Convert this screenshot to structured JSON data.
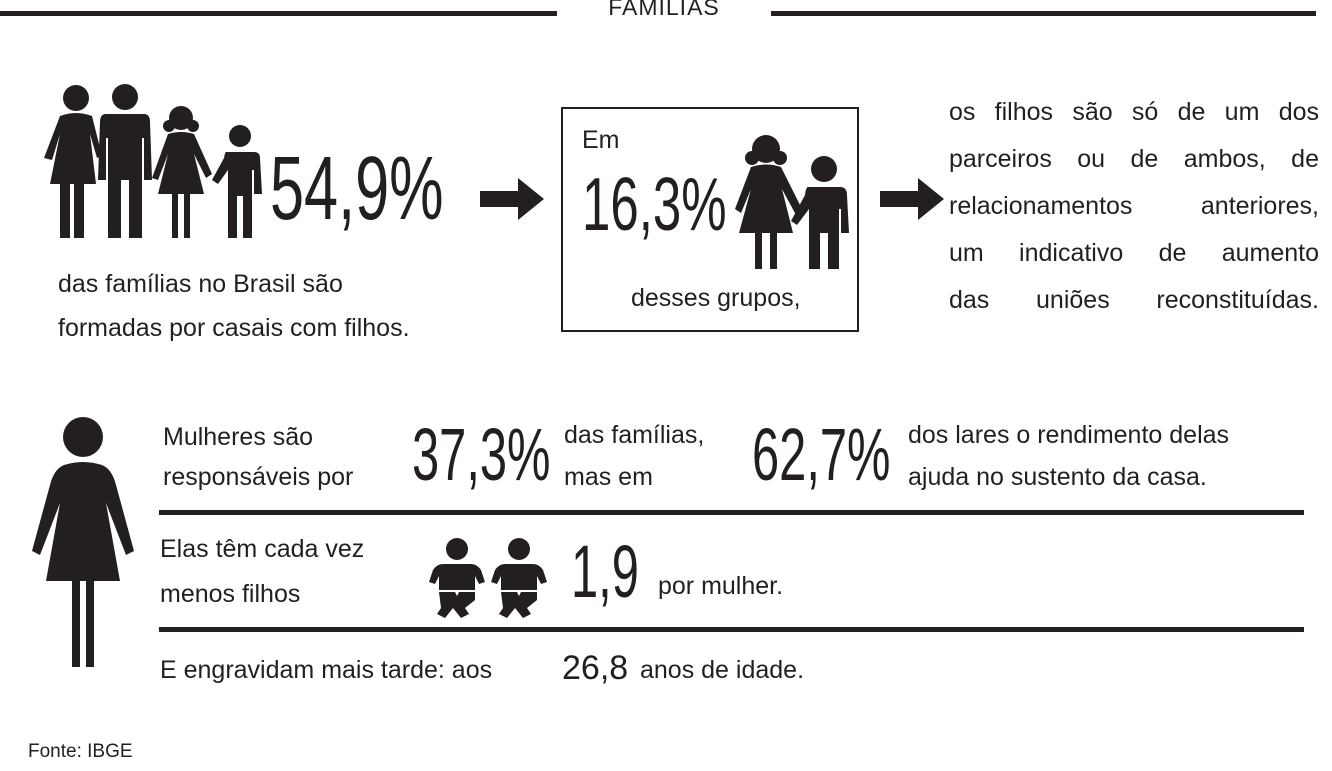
{
  "header": {
    "title": "FAMÍLIAS"
  },
  "families": {
    "percent": "54,9%",
    "caption_lines": [
      "das famílias no Brasil são",
      "formadas por casais com filhos."
    ]
  },
  "box": {
    "prefix": "Em",
    "percent": "16,3%",
    "suffix": "desses grupos,"
  },
  "reconstituted": {
    "lines": [
      "os filhos são só de um dos",
      "parceiros ou de ambos, de",
      "relacionamentos anteriores,",
      "um indicativo de aumento",
      "das uniões reconstituídas."
    ]
  },
  "women": {
    "resp_lines": [
      "Mulheres são",
      "responsáveis por"
    ],
    "resp_percent": "37,3%",
    "mid_lines": [
      "das famílias,",
      "mas em"
    ],
    "income_percent": "62,7%",
    "income_lines": [
      "dos lares o rendimento delas",
      "ajuda no sustento da casa."
    ],
    "children_lines": [
      "Elas têm cada vez",
      "menos filhos"
    ],
    "children_value": "1,9",
    "children_suffix": "por mulher.",
    "pregnancy_prefix": "E engravidam mais tarde: aos",
    "pregnancy_value": "26,8",
    "pregnancy_suffix": "anos de idade."
  },
  "source": "Fonte: IBGE",
  "icons": [
    "family-icon",
    "arrow-right-icon",
    "children-icon",
    "woman-icon",
    "baby-icon"
  ],
  "colors": {
    "ink": "#231f20",
    "background": "#ffffff"
  }
}
